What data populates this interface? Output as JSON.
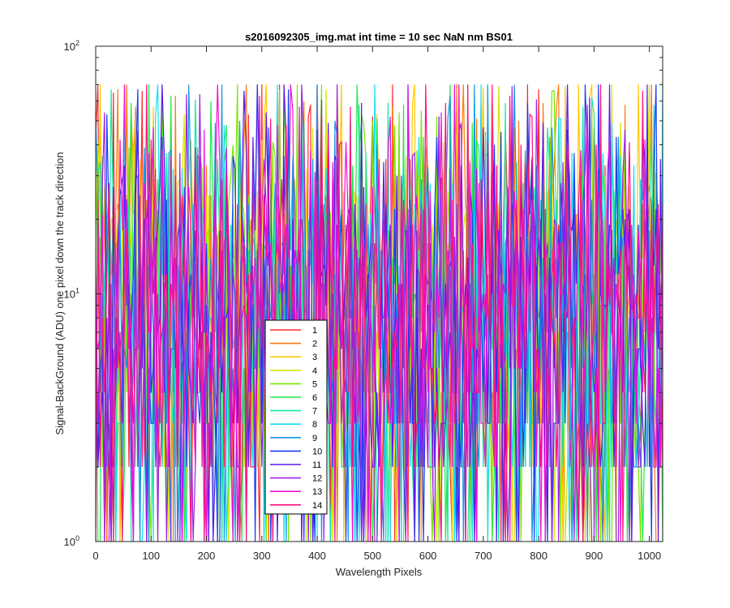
{
  "chart_data": {
    "type": "line",
    "title": "s2016092305_img.mat int time = 10 sec  NaN nm BS01",
    "xlabel": "Wavelength Pixels",
    "ylabel": "Signal-BackGround (ADU) one pixel down the track direction",
    "xlim": [
      0,
      1024
    ],
    "ylim": [
      1,
      100
    ],
    "yscale": "log",
    "x_ticks": [
      "0",
      "100",
      "200",
      "300",
      "400",
      "500",
      "600",
      "700",
      "800",
      "900",
      "1000"
    ],
    "y_ticks": [
      {
        "base": "10",
        "exp": "0"
      },
      {
        "base": "10",
        "exp": "1"
      },
      {
        "base": "10",
        "exp": "2"
      }
    ],
    "grid": false,
    "legend_position": "lower-left-center",
    "x_step": 4,
    "noise": {
      "median": 10,
      "low": 1,
      "high": 70,
      "seed": 20160923
    },
    "series": [
      {
        "name": "1",
        "color": "#ff2a2a"
      },
      {
        "name": "2",
        "color": "#ff7a10"
      },
      {
        "name": "3",
        "color": "#ffc800"
      },
      {
        "name": "4",
        "color": "#d2e600"
      },
      {
        "name": "5",
        "color": "#7ae600"
      },
      {
        "name": "6",
        "color": "#22e84a"
      },
      {
        "name": "7",
        "color": "#10e8a0"
      },
      {
        "name": "8",
        "color": "#10e0f0"
      },
      {
        "name": "9",
        "color": "#1496e6"
      },
      {
        "name": "10",
        "color": "#1a3cf0"
      },
      {
        "name": "11",
        "color": "#5a18f0"
      },
      {
        "name": "12",
        "color": "#a020e8"
      },
      {
        "name": "13",
        "color": "#ee10d6"
      },
      {
        "name": "14",
        "color": "#ff1080"
      }
    ]
  }
}
